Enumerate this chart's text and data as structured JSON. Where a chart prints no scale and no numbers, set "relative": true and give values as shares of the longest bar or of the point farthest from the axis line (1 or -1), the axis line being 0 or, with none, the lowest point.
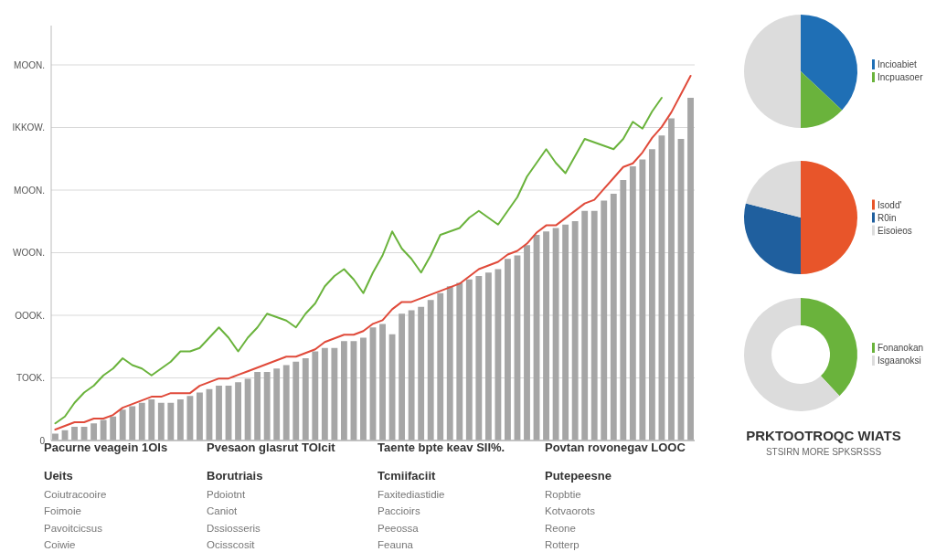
{
  "chart_data": [
    {
      "type": "bar",
      "relative": true,
      "grid": "y",
      "color": "#a6a6a6",
      "categories": [
        null,
        null,
        null,
        null,
        null,
        null,
        null,
        null,
        null,
        null,
        null,
        null,
        null,
        null,
        null,
        null,
        null,
        null,
        null,
        null,
        null,
        null,
        null,
        null,
        null,
        null,
        null,
        null,
        null,
        null,
        null,
        null,
        null,
        null,
        null,
        null,
        null,
        null,
        null,
        null,
        null,
        null,
        null,
        null,
        null,
        null,
        null,
        null,
        null,
        null,
        null,
        null,
        null,
        null,
        null,
        null,
        null,
        null,
        null,
        null,
        null,
        null,
        null,
        null,
        null,
        null,
        null
      ],
      "values": [
        0.02,
        0.03,
        0.04,
        0.04,
        0.05,
        0.06,
        0.07,
        0.09,
        0.1,
        0.11,
        0.12,
        0.11,
        0.11,
        0.12,
        0.13,
        0.14,
        0.15,
        0.16,
        0.16,
        0.17,
        0.18,
        0.2,
        0.2,
        0.21,
        0.22,
        0.23,
        0.24,
        0.26,
        0.27,
        0.27,
        0.29,
        0.29,
        0.3,
        0.33,
        0.34,
        0.31,
        0.37,
        0.38,
        0.39,
        0.41,
        0.43,
        0.45,
        0.46,
        0.47,
        0.48,
        0.49,
        0.5,
        0.53,
        0.54,
        0.57,
        0.6,
        0.61,
        0.62,
        0.63,
        0.64,
        0.67,
        0.67,
        0.7,
        0.72,
        0.76,
        0.8,
        0.82,
        0.85,
        0.89,
        0.94,
        0.88,
        1.0
      ],
      "annotations": [
        "0",
        "TOOK.",
        "OOOK.",
        "WOON.",
        "MOON.",
        "IKKOW.",
        "MOON.",
        "Pacurne veagein 1OIs",
        "Pvesaon glasrut TOIcit",
        "Taente bpte keav SII%.",
        "Povtan rovonegav LOOC",
        "Ueits",
        "Borutriais",
        "Tcmiifaciit",
        "Putepeesne",
        "Coiutracooire",
        "Pdoiotnt",
        "Faxitediastidie",
        "Ropbtie",
        "Foimoie",
        "Caniot",
        "Paccioirs",
        "Kotvaorots",
        "Pavoitcicsus",
        "Dssiosseris",
        "Peeossa",
        "Reone",
        "Coiwie",
        "Ocisscosit",
        "Feauna",
        "Rotterp"
      ]
    },
    {
      "type": "line",
      "relative": true,
      "categories": [
        null,
        null,
        null,
        null,
        null,
        null,
        null,
        null,
        null,
        null,
        null,
        null,
        null,
        null,
        null,
        null,
        null,
        null,
        null,
        null,
        null,
        null,
        null,
        null,
        null,
        null,
        null,
        null,
        null,
        null,
        null,
        null,
        null,
        null,
        null,
        null,
        null,
        null,
        null,
        null,
        null,
        null,
        null,
        null,
        null,
        null,
        null,
        null,
        null,
        null,
        null,
        null,
        null,
        null,
        null,
        null,
        null,
        null,
        null,
        null,
        null,
        null,
        null,
        null
      ],
      "series": [
        {
          "color": "#6ab33c",
          "values": [
            0.05,
            0.07,
            0.11,
            0.14,
            0.16,
            0.19,
            0.21,
            0.24,
            0.22,
            0.21,
            0.19,
            0.21,
            0.23,
            0.26,
            0.26,
            0.27,
            0.3,
            0.33,
            0.3,
            0.26,
            0.3,
            0.33,
            0.37,
            0.36,
            0.35,
            0.33,
            0.37,
            0.4,
            0.45,
            0.48,
            0.5,
            0.47,
            0.43,
            0.49,
            0.54,
            0.61,
            0.56,
            0.53,
            0.49,
            0.54,
            0.6,
            0.61,
            0.62,
            0.65,
            0.67,
            0.65,
            0.63,
            0.67,
            0.71,
            0.77,
            0.81,
            0.85,
            0.81,
            0.78,
            0.83,
            0.88,
            0.87,
            0.86,
            0.85,
            0.88,
            0.93,
            0.91,
            0.96,
            1.0
          ]
        }
      ]
    },
    {
      "type": "line",
      "relative": true,
      "categories": [
        null,
        null,
        null,
        null,
        null,
        null,
        null,
        null,
        null,
        null,
        null,
        null,
        null,
        null,
        null,
        null,
        null,
        null,
        null,
        null,
        null,
        null,
        null,
        null,
        null,
        null,
        null,
        null,
        null,
        null,
        null,
        null,
        null,
        null,
        null,
        null,
        null,
        null,
        null,
        null,
        null,
        null,
        null,
        null,
        null,
        null,
        null,
        null,
        null,
        null,
        null,
        null,
        null,
        null,
        null,
        null,
        null,
        null,
        null,
        null,
        null,
        null,
        null,
        null,
        null,
        null,
        null
      ],
      "series": [
        {
          "color": "#e04a3a",
          "values": [
            0.03,
            0.04,
            0.05,
            0.05,
            0.06,
            0.06,
            0.07,
            0.09,
            0.1,
            0.11,
            0.12,
            0.12,
            0.13,
            0.13,
            0.13,
            0.15,
            0.16,
            0.17,
            0.17,
            0.18,
            0.19,
            0.2,
            0.21,
            0.22,
            0.23,
            0.23,
            0.24,
            0.25,
            0.27,
            0.28,
            0.29,
            0.29,
            0.3,
            0.32,
            0.33,
            0.36,
            0.38,
            0.38,
            0.39,
            0.4,
            0.41,
            0.42,
            0.43,
            0.45,
            0.47,
            0.48,
            0.49,
            0.51,
            0.52,
            0.54,
            0.57,
            0.59,
            0.59,
            0.61,
            0.63,
            0.65,
            0.66,
            0.69,
            0.72,
            0.75,
            0.76,
            0.79,
            0.83,
            0.86,
            0.9,
            0.95,
            1.0
          ]
        }
      ]
    },
    {
      "type": "pie",
      "legend": "right",
      "categories": [
        "Incioabiet",
        "Incpuasoer",
        null
      ],
      "values": [
        37,
        13,
        50
      ],
      "colors": [
        "#1f6fb5",
        "#6ab33c",
        "#dcdcdc"
      ]
    },
    {
      "type": "pie",
      "legend": "right",
      "categories": [
        "Isodd'",
        "R0in",
        "Eisoieos"
      ],
      "values": [
        50,
        29,
        21
      ],
      "colors": [
        "#e8552a",
        "#1f5f9e",
        "#dcdcdc"
      ]
    },
    {
      "type": "donut",
      "legend": "right",
      "title": "PRKTOOTROQC WIATS",
      "subtitle": "STSIRN MORE SPKSRSSS",
      "categories": [
        "Fonanokan",
        "Isgaanoksi"
      ],
      "values": [
        38,
        62
      ],
      "colors": [
        "#6ab33c",
        "#dcdcdc"
      ]
    }
  ]
}
